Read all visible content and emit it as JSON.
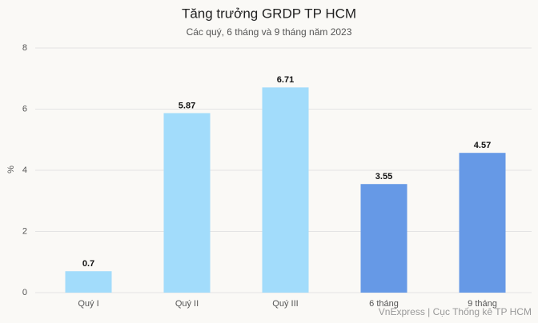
{
  "chart_data": {
    "type": "bar",
    "title": "Tăng trưởng GRDP TP HCM",
    "subtitle": "Các quý, 6 tháng và 9 tháng năm 2023",
    "y_label": "%",
    "source": "VnExpress | Cục Thống kê TP HCM",
    "categories": [
      "Quý I",
      "Quý II",
      "Quý III",
      "6 tháng",
      "9 tháng"
    ],
    "values": [
      0.7,
      5.87,
      6.71,
      3.55,
      4.57
    ],
    "colors": [
      "#a2dcfb",
      "#a2dcfb",
      "#a2dcfb",
      "#6699e6",
      "#6699e6"
    ],
    "ylim": [
      0,
      8
    ],
    "yticks": [
      0,
      2,
      4,
      6,
      8
    ],
    "grid": true
  }
}
